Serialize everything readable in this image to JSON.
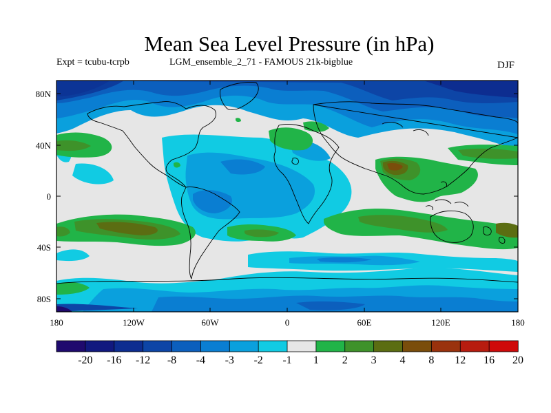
{
  "header": {
    "title": "Mean Sea Level Pressure (in hPa)",
    "expt": "Expt = tcubu-tcrpb",
    "run": "LGM_ensemble_2_71 - FAMOUS 21k-bigblue",
    "season": "DJF"
  },
  "axes": {
    "lat_ticks": [
      "80N",
      "40N",
      "0",
      "40S",
      "80S"
    ],
    "lat_values": [
      80,
      40,
      0,
      -40,
      -80
    ],
    "lon_ticks": [
      "180",
      "120W",
      "60W",
      "0",
      "60E",
      "120E",
      "180"
    ],
    "lon_values": [
      -180,
      -120,
      -60,
      0,
      60,
      120,
      180
    ],
    "lon_range": [
      -180,
      180
    ],
    "lat_range": [
      -90,
      90
    ]
  },
  "colorbar": {
    "labels": [
      "-20",
      "-16",
      "-12",
      "-8",
      "-4",
      "-3",
      "-2",
      "-1",
      "1",
      "2",
      "3",
      "4",
      "8",
      "12",
      "16",
      "20"
    ],
    "colors": [
      "#1f0a6e",
      "#11197f",
      "#0d2d90",
      "#0d45a6",
      "#0c5fbd",
      "#0a7ed2",
      "#0aa0dd",
      "#11cbe3",
      "#e6e6e6",
      "#21b448",
      "#3e922a",
      "#5b6d12",
      "#7a4d0b",
      "#9a320d",
      "#b71c0f",
      "#cf0a0a"
    ]
  },
  "map_colors": {
    "neutral": "#e6e6e6",
    "neg1": "#11cbe3",
    "neg2": "#0aa0dd",
    "neg3": "#0a7ed2",
    "neg4": "#0c5fbd",
    "neg8": "#0d45a6",
    "neg12": "#0d2d90",
    "pos1": "#21b448",
    "pos2": "#3e922a",
    "pos3": "#5b6d12",
    "pos4": "#7a4d0b"
  }
}
